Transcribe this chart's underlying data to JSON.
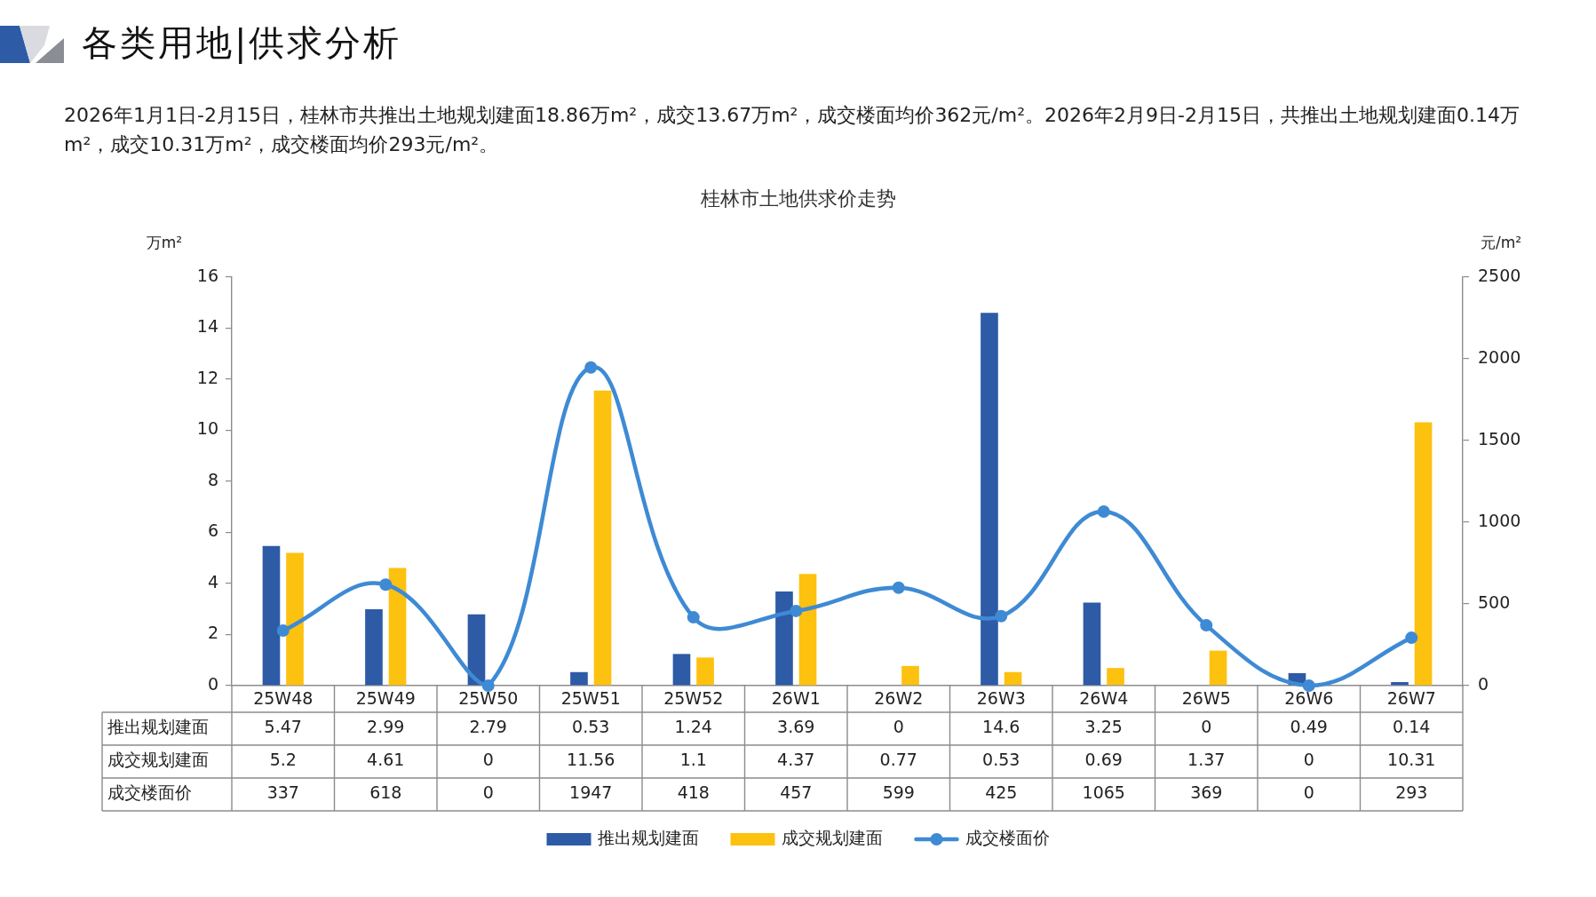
{
  "chart_data": {
    "type": "bar",
    "title": "桂林市土地供求价走势",
    "subtitle": "2026年1月1日-2月15日，桂林市共推出土地规划建面18.86万m²，成交13.67万m²，成交楼面均价362元/m²。2026年2月9日-2月15日，共推出土地规划建面0.14万m²，成交10.31万m²，成交楼面均价293元/m²。",
    "annotations": [
      "各类用地|供求分析"
    ],
    "ylabel": "万m²",
    "y2label": "元/m²",
    "categories": [
      "25W48",
      "25W49",
      "25W50",
      "25W51",
      "25W52",
      "26W1",
      "26W2",
      "26W3",
      "26W4",
      "26W5",
      "26W6",
      "26W7"
    ],
    "series": [
      {
        "name": "推出规划建面",
        "color": "#2e5ba6",
        "values": [
          5.47,
          2.99,
          2.79,
          0.53,
          1.24,
          3.69,
          0,
          14.6,
          3.25,
          0,
          0.49,
          0.14
        ]
      },
      {
        "name": "成交规划建面",
        "color": "#fdc10f",
        "values": [
          5.2,
          4.61,
          0,
          11.56,
          1.1,
          4.37,
          0.77,
          0.53,
          0.69,
          1.37,
          0,
          10.31
        ]
      },
      {
        "name": "成交楼面价",
        "type": "line",
        "axis": "y2",
        "color": "#3e8ad4",
        "values": [
          337,
          618,
          0,
          1947,
          418,
          457,
          599,
          425,
          1065,
          369,
          0,
          293
        ]
      }
    ],
    "ylim": [
      0,
      16
    ],
    "yticks": [
      0,
      2,
      4,
      6,
      8,
      10,
      12,
      14,
      16
    ],
    "y2lim": [
      0,
      2500
    ],
    "y2ticks": [
      0,
      500,
      1000,
      1500,
      2000,
      2500
    ],
    "legend": "bottom",
    "data_labels": true,
    "marker": "circle"
  }
}
